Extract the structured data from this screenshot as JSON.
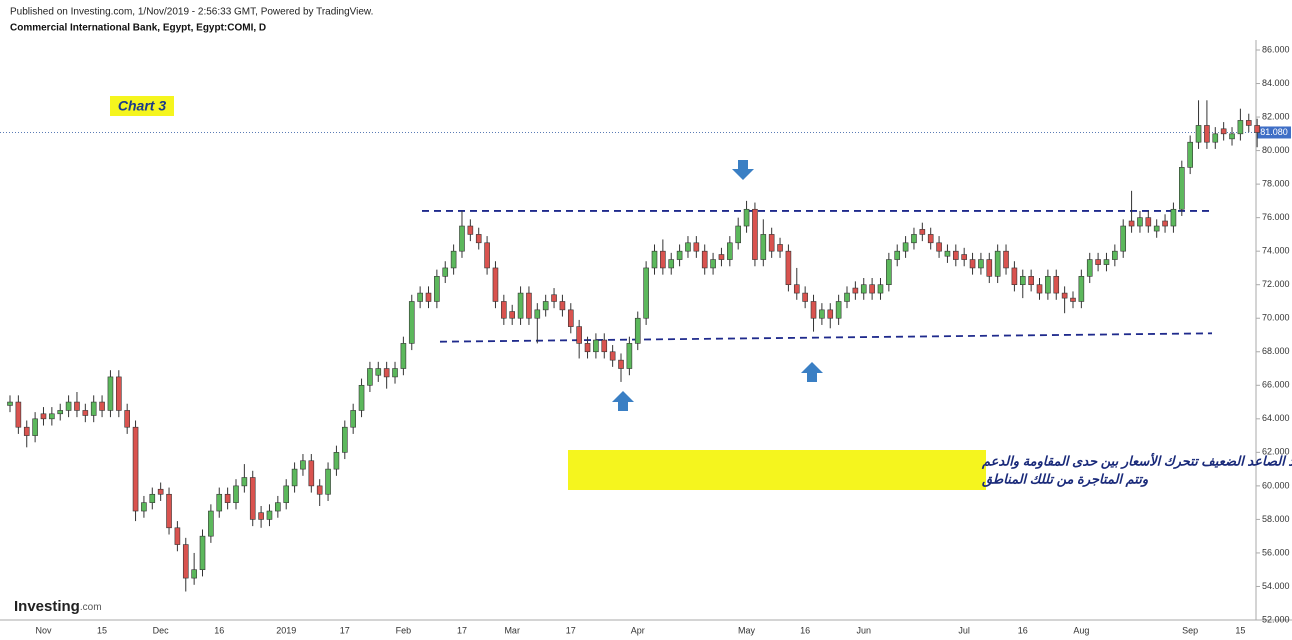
{
  "chart_data": {
    "type": "candlestick",
    "source": "Published on Investing.com, 1/Nov/2019 - 2:56:33 GMT, Powered by TradingView.",
    "title": "Commercial International Bank, Egypt, Egypt:COMI, D",
    "label": "Chart 3",
    "annotation": [
      "فى حالة الترند الصاعد الضعيف  تتحرك الأسعار بين حدى المقاومة والدعم",
      "وتتم المتاجرة من تللك المناطق"
    ],
    "logo": "Investing",
    "logo_suffix": ".com",
    "up_color": "#5cb85c",
    "down_color": "#d9534f",
    "level_color": "#1f2a8c",
    "ylim": [
      52,
      86
    ],
    "yticks": [
      {
        "value": 52,
        "label": "52.000"
      },
      {
        "value": 54,
        "label": "54.000"
      },
      {
        "value": 56,
        "label": "56.000"
      },
      {
        "value": 58,
        "label": "58.000"
      },
      {
        "value": 60,
        "label": "60.000"
      },
      {
        "value": 62,
        "label": "62.000"
      },
      {
        "value": 64,
        "label": "64.000"
      },
      {
        "value": 66,
        "label": "66.000"
      },
      {
        "value": 68,
        "label": "68.000"
      },
      {
        "value": 70,
        "label": "70.000"
      },
      {
        "value": 72,
        "label": "72.000"
      },
      {
        "value": 74,
        "label": "74.000"
      },
      {
        "value": 76,
        "label": "76.000"
      },
      {
        "value": 78,
        "label": "78.000"
      },
      {
        "value": 80,
        "label": "80.000"
      },
      {
        "value": 82,
        "label": "82.000"
      },
      {
        "value": 84,
        "label": "84.000"
      },
      {
        "value": 86,
        "label": "86.000"
      }
    ],
    "last_value": {
      "value": 81.08,
      "label": "81.080"
    },
    "levels": [
      {
        "start": 76.4,
        "end": 76.4
      },
      {
        "start": 68.6,
        "end": 69.1
      }
    ],
    "categories": [
      null,
      null,
      null,
      null,
      "Nov",
      null,
      null,
      null,
      null,
      null,
      null,
      "15",
      null,
      null,
      null,
      null,
      null,
      null,
      "Dec",
      null,
      null,
      null,
      null,
      null,
      null,
      "16",
      null,
      null,
      null,
      null,
      null,
      null,
      null,
      "2019",
      null,
      null,
      null,
      null,
      null,
      null,
      "17",
      null,
      null,
      null,
      null,
      null,
      null,
      "Feb",
      null,
      null,
      null,
      null,
      null,
      null,
      "17",
      null,
      null,
      null,
      null,
      null,
      "Mar",
      null,
      null,
      null,
      null,
      null,
      null,
      "17",
      null,
      null,
      null,
      null,
      null,
      null,
      null,
      "Apr",
      null,
      null,
      null,
      null,
      null,
      null,
      null,
      null,
      null,
      null,
      null,
      null,
      "May",
      null,
      null,
      null,
      null,
      null,
      null,
      "16",
      null,
      null,
      null,
      null,
      null,
      null,
      "Jun",
      null,
      null,
      null,
      null,
      null,
      null,
      null,
      null,
      null,
      null,
      null,
      "Jul",
      null,
      null,
      null,
      null,
      null,
      null,
      "16",
      null,
      null,
      null,
      null,
      null,
      null,
      "Aug",
      null,
      null,
      null,
      null,
      null,
      null,
      null,
      null,
      null,
      null,
      null,
      null,
      "Sep",
      null,
      null,
      null,
      null,
      null,
      "15",
      null,
      null
    ],
    "open": [
      64.8,
      65,
      63.5,
      63,
      64.3,
      64,
      64.3,
      64.5,
      65,
      64.5,
      64.2,
      65,
      64.5,
      66.5,
      64.5,
      63.5,
      58.5,
      59,
      59.8,
      59.5,
      57.5,
      56.5,
      54.5,
      55,
      57,
      58.5,
      59.5,
      59,
      60,
      60.5,
      58.4,
      58,
      58.5,
      59,
      60,
      61,
      61.5,
      60,
      59.5,
      61,
      62,
      63.5,
      64.5,
      66,
      66.6,
      67,
      66.5,
      67,
      68.5,
      71,
      71.5,
      71,
      72.5,
      73,
      74,
      75.5,
      75,
      74.5,
      73,
      71,
      70.4,
      70,
      71.5,
      70,
      70.5,
      71.4,
      71,
      70.5,
      69.5,
      68.5,
      68,
      68.7,
      68,
      67.5,
      67,
      68.5,
      70,
      73,
      74,
      73,
      73.5,
      74,
      74.5,
      74,
      73,
      73.8,
      73.5,
      74.5,
      75.5,
      76.5,
      73.5,
      75,
      74.4,
      74,
      72,
      71.5,
      71,
      70,
      70.5,
      70,
      71,
      71.8,
      71.5,
      72,
      71.5,
      72,
      73.5,
      74,
      74.5,
      75.3,
      75,
      74.5,
      73.7,
      74,
      73.8,
      73.5,
      73,
      73.5,
      72.5,
      74,
      73,
      72,
      72.5,
      72,
      71.5,
      72.5,
      71.5,
      71.2,
      71,
      72.5,
      73.5,
      73.2,
      73.5,
      74,
      75.8,
      75.5,
      76,
      75.2,
      75.8,
      75.5,
      76.5,
      79,
      80.5,
      81.5,
      80.5,
      81.3,
      80.7,
      81,
      81.8,
      81.5
    ],
    "high": [
      65.4,
      65.4,
      63.9,
      64.4,
      64.7,
      64.7,
      64.9,
      65.4,
      65.6,
      64.9,
      65.4,
      65.4,
      66.9,
      66.9,
      64.9,
      63.9,
      59.4,
      59.9,
      60.2,
      59.9,
      57.9,
      56.9,
      56,
      57.4,
      58.9,
      59.9,
      59.9,
      60.4,
      61.3,
      60.9,
      58.8,
      58.9,
      59.4,
      60.4,
      61.4,
      61.9,
      61.9,
      60.4,
      61.4,
      62.4,
      63.9,
      64.9,
      66.4,
      67.4,
      67.4,
      67.4,
      67.4,
      68.9,
      71.4,
      71.9,
      71.9,
      72.9,
      73.4,
      74.4,
      76.4,
      75.9,
      75.4,
      74.9,
      73.4,
      71.4,
      70.8,
      71.9,
      71.9,
      70.9,
      71.4,
      71.8,
      71.4,
      70.9,
      69.9,
      68.9,
      69.1,
      69.1,
      68.4,
      67.9,
      68.9,
      70.4,
      73.4,
      74.4,
      74.7,
      73.9,
      74.4,
      74.9,
      74.9,
      74.4,
      73.9,
      74.2,
      74.9,
      76,
      77,
      76.9,
      75.9,
      75.4,
      74.8,
      74.4,
      73,
      71.9,
      71.4,
      70.9,
      70.9,
      71.4,
      71.9,
      72.2,
      72.4,
      72.4,
      72.4,
      73.9,
      74.4,
      74.9,
      75.4,
      75.7,
      75.4,
      74.9,
      74.4,
      74.4,
      74.2,
      73.9,
      73.9,
      73.9,
      74.4,
      74.4,
      73.4,
      72.9,
      72.9,
      72.4,
      72.9,
      72.9,
      71.9,
      71.6,
      72.9,
      73.9,
      73.9,
      73.9,
      74.4,
      75.9,
      77.6,
      76.4,
      76.4,
      75.9,
      76.2,
      76.9,
      79.4,
      80.9,
      83,
      83,
      81.4,
      81.7,
      81.4,
      82.5,
      82.2,
      81.9
    ],
    "low": [
      64.4,
      63.1,
      62.3,
      62.6,
      63.6,
      63.6,
      63.9,
      64.1,
      64.1,
      63.8,
      63.8,
      64.1,
      64.1,
      64.1,
      63.1,
      57.9,
      58.1,
      58.6,
      59.1,
      57.1,
      56.1,
      53.7,
      54.1,
      54.6,
      56.6,
      58.1,
      58.6,
      58.6,
      59.6,
      57.6,
      57.5,
      57.6,
      58.1,
      58.6,
      59.6,
      60.6,
      59.6,
      58.8,
      59.1,
      60.6,
      61.6,
      63.1,
      64.1,
      65.6,
      66.2,
      65.8,
      66.1,
      66.6,
      68.1,
      70.6,
      70.6,
      70.6,
      72.1,
      72.6,
      73.6,
      74.6,
      74.1,
      72.6,
      70.6,
      69.6,
      69.6,
      69.6,
      69.6,
      68.5,
      70.1,
      70.6,
      70.1,
      69.1,
      67.6,
      67.6,
      67.6,
      67.6,
      67.1,
      66.2,
      66.6,
      68.1,
      69.6,
      72.6,
      72.6,
      72.6,
      73.1,
      73.6,
      73.6,
      72.6,
      72.6,
      73.1,
      73.1,
      74.1,
      75.1,
      73.1,
      73.1,
      73.6,
      73.6,
      71.6,
      71.1,
      70.6,
      69.2,
      69.6,
      69.4,
      69.6,
      70.6,
      71.1,
      71.1,
      71.1,
      71.1,
      71.6,
      73.1,
      73.6,
      74.1,
      74.6,
      74.1,
      73.6,
      73.3,
      73.1,
      73.1,
      72.6,
      72.6,
      72.1,
      72.1,
      72.6,
      71.6,
      71.2,
      71.6,
      71.1,
      71.1,
      71.1,
      70.3,
      70.6,
      70.6,
      72.1,
      72.8,
      72.8,
      73.1,
      73.6,
      75.1,
      75.1,
      75.1,
      74.8,
      75.1,
      75.1,
      76.1,
      78.6,
      80.1,
      80.1,
      80.1,
      80.6,
      80.3,
      80.6,
      81.1,
      80.2
    ],
    "close": [
      65,
      63.5,
      63,
      64,
      64,
      64.3,
      64.5,
      65,
      64.5,
      64.2,
      65,
      64.5,
      66.5,
      64.5,
      63.5,
      58.5,
      59,
      59.5,
      59.5,
      57.5,
      56.5,
      54.5,
      55,
      57,
      58.5,
      59.5,
      59,
      60,
      60.5,
      58,
      58,
      58.5,
      59,
      60,
      61,
      61.5,
      60,
      59.5,
      61,
      62,
      63.5,
      64.5,
      66,
      67,
      67,
      66.5,
      67,
      68.5,
      71,
      71.5,
      71,
      72.5,
      73,
      74,
      75.5,
      75,
      74.5,
      73,
      71,
      70,
      70,
      71.5,
      70,
      70.5,
      71,
      71,
      70.5,
      69.5,
      68.5,
      68,
      68.7,
      68,
      67.5,
      67,
      68.5,
      70,
      73,
      74,
      73,
      73.5,
      74,
      74.5,
      74,
      73,
      73.5,
      73.5,
      74.5,
      75.5,
      76.5,
      73.5,
      75,
      74,
      74,
      72,
      71.5,
      71,
      70,
      70.5,
      70,
      71,
      71.5,
      71.5,
      72,
      71.5,
      72,
      73.5,
      74,
      74.5,
      75,
      75,
      74.5,
      74,
      74,
      73.5,
      73.5,
      73,
      73.5,
      72.5,
      74,
      73,
      72,
      72.5,
      72,
      71.5,
      72.5,
      71.5,
      71.2,
      71,
      72.5,
      73.5,
      73.2,
      73.5,
      74,
      75.5,
      75.5,
      76,
      75.5,
      75.5,
      75.5,
      76.5,
      79,
      80.5,
      81.5,
      80.5,
      81,
      81,
      81,
      81.8,
      81.5,
      81.08
    ]
  }
}
